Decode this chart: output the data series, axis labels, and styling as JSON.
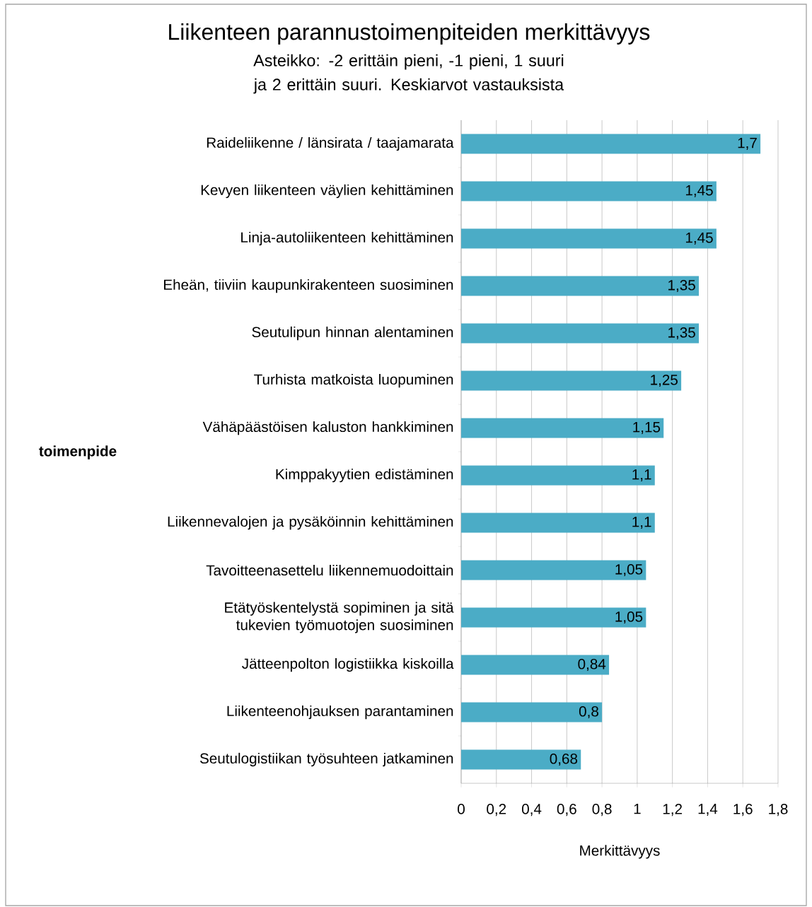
{
  "chart_data": {
    "type": "bar",
    "orientation": "horizontal",
    "title": "Liikenteen parannustoimenpiteiden merkittävyys",
    "subtitle": "Asteikko: -2 erittäin pieni, -1 pieni, 1 suuri ja 2 erittäin suuri. Keskiarvot vastauksista",
    "xlabel": "Merkittävyys",
    "ylabel": "toimenpide",
    "categories": [
      "Raideliikenne / länsirata / taajamarata",
      "Kevyen liikenteen väylien kehittäminen",
      "Linja-autoliikenteen kehittäminen",
      "Eheän, tiiviin kaupunkirakenteen suosiminen",
      "Seutulipun hinnan alentaminen",
      "Turhista matkoista luopuminen",
      "Vähäpäästöisen kaluston hankkiminen",
      "Kimppakyytien edistäminen",
      "Liikennevalojen ja pysäköinnin kehittäminen",
      "Tavoitteenasettelu liikennemuodoittain",
      "Etätyöskentelystä sopiminen ja sitä tukevien työmuotojen suosiminen",
      "Jätteenpolton logistiikka kiskoilla",
      "Liikenteenohjauksen parantaminen",
      "Seutulogistiikan työsuhteen jatkaminen"
    ],
    "values": [
      1.7,
      1.45,
      1.45,
      1.35,
      1.35,
      1.25,
      1.15,
      1.1,
      1.1,
      1.05,
      1.05,
      0.84,
      0.8,
      0.68
    ],
    "value_labels": [
      "1,7",
      "1,45",
      "1,45",
      "1,35",
      "1,35",
      "1,25",
      "1,15",
      "1,1",
      "1,1",
      "1,05",
      "1,05",
      "0,84",
      "0,8",
      "0,68"
    ],
    "color": "#4bacc6",
    "xlim": [
      0,
      1.8
    ],
    "xticks": [
      0,
      {
        "value": 0.2,
        "label": "0,2"
      },
      {
        "value": 0.4,
        "label": "0,4"
      },
      {
        "value": 0.6,
        "label": "0,6"
      },
      {
        "value": 0.8,
        "label": "0,8"
      },
      1,
      {
        "value": 1.2,
        "label": "1,2"
      },
      {
        "value": 1.4,
        "label": "1,4"
      },
      {
        "value": 1.6,
        "label": "1,6"
      },
      {
        "value": 1.8,
        "label": "1,8"
      }
    ],
    "grid": "x"
  }
}
